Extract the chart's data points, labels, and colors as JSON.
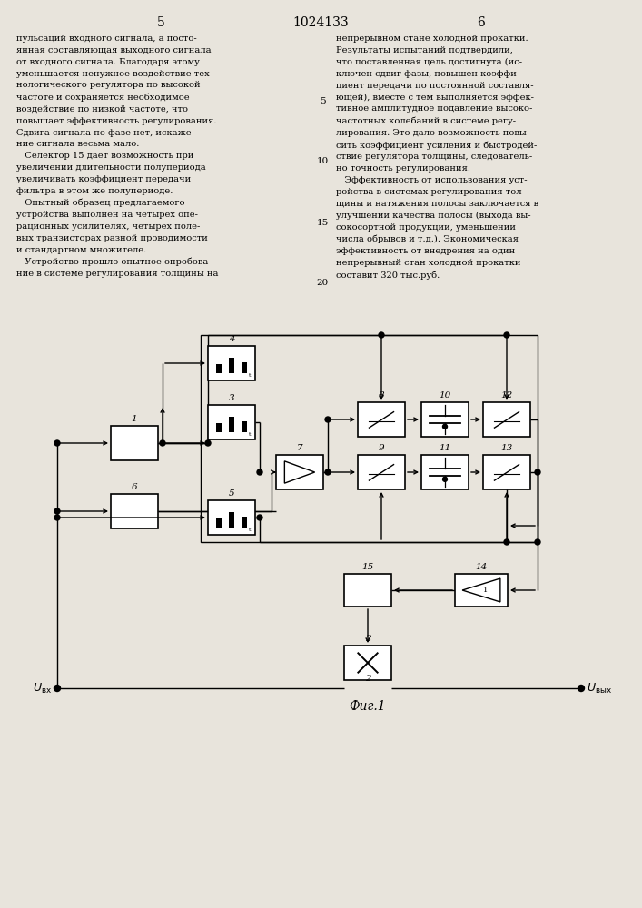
{
  "bg": "#e8e4dc",
  "lc": "#000000",
  "page_num_left": "5",
  "page_num_center": "1024133",
  "page_num_right": "6",
  "fig_caption": "Фиг.1",
  "left_text": "пульсаций входного сигнала, а посто-\nянная составляющая выходного сигнала\nот входного сигнала. Благодаря этому\nуменьшается ненужное воздействие тех-\nнологического регулятора по высокой\nчастоте и сохраняется необходимое\nвоздействие по низкой частоте, что\nповышает эффективность регулирования.\nСдвига сигнала по фазе нет, искаже-\nние сигнала весьма мало.\n   Селектор 15 дает возможность при\nувеличении длительности полупериода\nувеличивать коэффициент передачи\nфильтра в этом же полупериоде.\n   Опытный образец предлагаемого\nустройства выполнен на четырех опе-\nрационных усилителях, четырех поле-\nвых транзисторах разной проводимости\nи стандартном множителе.\n   Устройство прошло опытное опробова-\nние в системе регулирования толщины на",
  "right_text": "непрерывном стане холодной прокатки.\nРезультаты испытаний подтвердили,\nчто поставленная цель достигнута (ис-\nключен сдвиг фазы, повышен коэффи-\nциент передачи по постоянной составля-\nющей), вместе с тем выполняется эффек-\nтивное амплитудное подавление высоко-\nчастотных колебаний в системе регу-\nлирования. Это дало возможность повы-\nсить коэффициент усиления и быстродей-\nствие регулятора толщины, следователь-\nно точность регулирования.\n   Эффективность от использования уст-\nройства в системах регулирования тол-\nщины и натяжения полосы заключается в\nулучшении качества полосы (выхода вы-\nсокосортной продукции, уменьшении\nчисла обрывов и т.д.). Экономическая\nэффективность от внедрения на один\nнепрерывный стан холодной прокатки\nсоставит 320 тыс.руб."
}
